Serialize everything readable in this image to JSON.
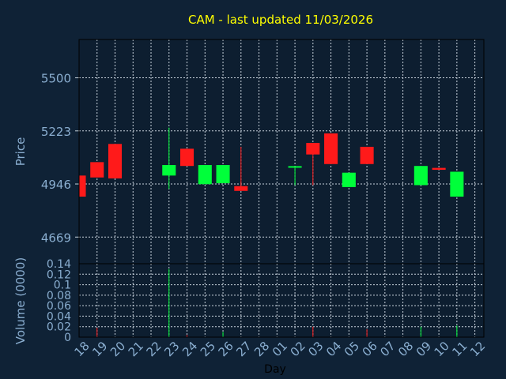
{
  "colors": {
    "background": "#0f2236",
    "plot_bg": "#0d1e30",
    "title": "#ffff00",
    "axis_text": "#8aaed0",
    "grid": "#c8d2dc",
    "up": "#00ff3a",
    "down": "#ff1a1a",
    "black": "#000000"
  },
  "chart_data": [
    {
      "type": "candlestick",
      "title": "CAM - last updated 11/03/2026",
      "ylabel": "Price",
      "ylim": [
        4530,
        5700
      ],
      "yticks": [
        4669,
        4946,
        5223,
        5500
      ],
      "grid": true,
      "categories": [
        "18",
        "19",
        "20",
        "21",
        "22",
        "23",
        "24",
        "25",
        "26",
        "27",
        "28",
        "01",
        "02",
        "03",
        "04",
        "05",
        "06",
        "07",
        "08",
        "09",
        "10",
        "11",
        "12"
      ],
      "candles": [
        {
          "x": "18",
          "open": 4990,
          "close": 4880,
          "high": 4990,
          "low": 4880
        },
        {
          "x": "19",
          "open": 5060,
          "close": 4980,
          "high": 5060,
          "low": 4980
        },
        {
          "x": "20",
          "open": 5155,
          "close": 4975,
          "high": 5155,
          "low": 4975
        },
        {
          "x": "23",
          "open": 4990,
          "close": 5045,
          "high": 5240,
          "low": 4920
        },
        {
          "x": "24",
          "open": 5130,
          "close": 5040,
          "high": 5130,
          "low": 5040
        },
        {
          "x": "25",
          "open": 4945,
          "close": 5045,
          "high": 5045,
          "low": 4945
        },
        {
          "x": "26",
          "open": 4950,
          "close": 5045,
          "high": 5045,
          "low": 4950
        },
        {
          "x": "27",
          "open": 4935,
          "close": 4910,
          "high": 5140,
          "low": 4910
        },
        {
          "x": "02",
          "open": 5030,
          "close": 5035,
          "high": 5035,
          "low": 4940
        },
        {
          "x": "03",
          "open": 5160,
          "close": 5100,
          "high": 5160,
          "low": 4940
        },
        {
          "x": "04",
          "open": 5210,
          "close": 5050,
          "high": 5210,
          "low": 5050
        },
        {
          "x": "05",
          "open": 4930,
          "close": 5005,
          "high": 5005,
          "low": 4930
        },
        {
          "x": "06",
          "open": 5140,
          "close": 5050,
          "high": 5140,
          "low": 5050
        },
        {
          "x": "09",
          "open": 4940,
          "close": 5040,
          "high": 5040,
          "low": 4940
        },
        {
          "x": "10",
          "open": 5030,
          "close": 5020,
          "high": 5030,
          "low": 5020
        },
        {
          "x": "11",
          "open": 4880,
          "close": 5010,
          "high": 5010,
          "low": 4880
        }
      ]
    },
    {
      "type": "bar",
      "ylabel": "Volume (0000)",
      "xlabel": "Day",
      "ylim": [
        0,
        0.14
      ],
      "yticks": [
        "0",
        "0.02",
        "0.04",
        "0.06",
        "0.08",
        "0.1",
        "0.12",
        "0.14"
      ],
      "grid": true,
      "categories": [
        "18",
        "19",
        "20",
        "21",
        "22",
        "23",
        "24",
        "25",
        "26",
        "27",
        "28",
        "01",
        "02",
        "03",
        "04",
        "05",
        "06",
        "07",
        "08",
        "09",
        "10",
        "11",
        "12"
      ],
      "bars": [
        {
          "x": "19",
          "value": 0.018,
          "dir": "down"
        },
        {
          "x": "23",
          "value": 0.13,
          "dir": "up"
        },
        {
          "x": "24",
          "value": 0.004,
          "dir": "down"
        },
        {
          "x": "26",
          "value": 0.01,
          "dir": "up"
        },
        {
          "x": "03",
          "value": 0.02,
          "dir": "down"
        },
        {
          "x": "06",
          "value": 0.015,
          "dir": "down"
        },
        {
          "x": "09",
          "value": 0.02,
          "dir": "up"
        },
        {
          "x": "11",
          "value": 0.022,
          "dir": "up"
        }
      ]
    }
  ]
}
